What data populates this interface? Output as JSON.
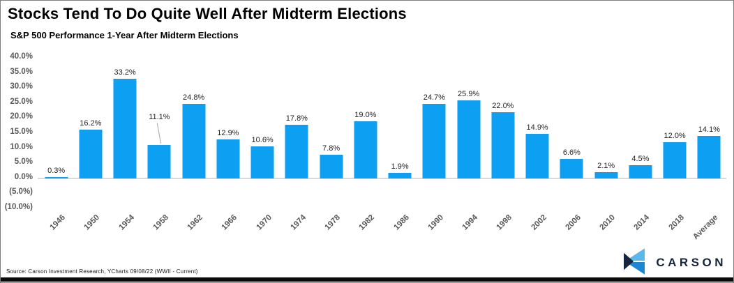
{
  "header": {
    "title": "Stocks Tend To Do Quite Well After Midterm Elections",
    "subtitle": "S&P 500 Performance 1-Year After Midterm Elections"
  },
  "chart_data": {
    "type": "bar",
    "title": "Stocks Tend To Do Quite Well After Midterm Elections",
    "subtitle": "S&P 500 Performance 1-Year After Midterm Elections",
    "categories": [
      "1946",
      "1950",
      "1954",
      "1958",
      "1962",
      "1966",
      "1970",
      "1974",
      "1978",
      "1982",
      "1986",
      "1990",
      "1994",
      "1998",
      "2002",
      "2006",
      "2010",
      "2014",
      "2018",
      "Average"
    ],
    "values": [
      0.3,
      16.2,
      33.2,
      11.1,
      24.8,
      12.9,
      10.6,
      17.8,
      7.8,
      19.0,
      1.9,
      24.7,
      25.9,
      22.0,
      14.9,
      6.6,
      2.1,
      4.5,
      12.0,
      14.1
    ],
    "value_labels": [
      "0.3%",
      "16.2%",
      "33.2%",
      "11.1%",
      "24.8%",
      "12.9%",
      "10.6%",
      "17.8%",
      "7.8%",
      "19.0%",
      "1.9%",
      "24.7%",
      "25.9%",
      "22.0%",
      "14.9%",
      "6.6%",
      "2.1%",
      "4.5%",
      "12.0%",
      "14.1%"
    ],
    "xlabel": "",
    "ylabel": "",
    "ylim": [
      -10,
      40
    ],
    "yticks": [
      {
        "value": 40,
        "label": "40.0%"
      },
      {
        "value": 35,
        "label": "35.0%"
      },
      {
        "value": 30,
        "label": "30.0%"
      },
      {
        "value": 25,
        "label": "25.0%"
      },
      {
        "value": 20,
        "label": "20.0%"
      },
      {
        "value": 15,
        "label": "15.0%"
      },
      {
        "value": 10,
        "label": "10.0%"
      },
      {
        "value": 5,
        "label": "5.0%"
      },
      {
        "value": 0,
        "label": "0.0%"
      },
      {
        "value": -5,
        "label": "(5.0%)"
      },
      {
        "value": -10,
        "label": "(10.0%)"
      }
    ],
    "grid": false,
    "legend": false,
    "bar_color": "#0d9ff2",
    "callout_index": 3
  },
  "footer": {
    "source": "Source: Carson Investment  Research, YCharts 09/08/22 (WWII - Current)",
    "logo": {
      "text": "CARSON",
      "icon": "carson-chevron-icon",
      "navy": "#16243d",
      "light_blue": "#58b9ea",
      "mid_blue": "#1c86d2"
    }
  }
}
